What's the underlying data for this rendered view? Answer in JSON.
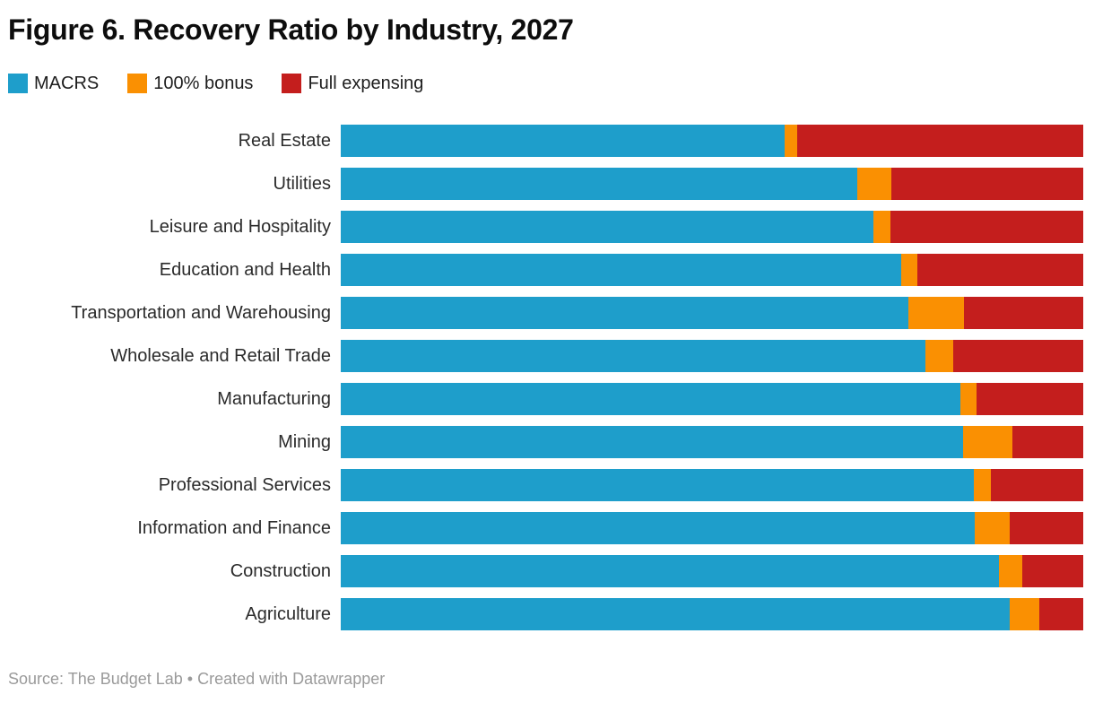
{
  "page": {
    "title": "Figure 6. Recovery Ratio by Industry, 2027",
    "footer": "Source: The Budget Lab • Created with Datawrapper"
  },
  "colors": {
    "macrs_blue": "#1e9ecb",
    "bonus_orange": "#fa9002",
    "full_expensing_red": "#c41e1d",
    "title_text": "#0d0d0d",
    "label_text": "#2b2b2b",
    "footer_text": "#9a9a9a",
    "background": "#ffffff"
  },
  "chart_data": {
    "type": "bar",
    "orientation": "horizontal",
    "stacked": true,
    "normalized": true,
    "stack_total": 1.0,
    "title": "Figure 6. Recovery Ratio by Industry, 2027",
    "xlabel": "",
    "ylabel": "",
    "xlim": [
      0,
      1
    ],
    "grid": false,
    "axes_visible": false,
    "legend_position": "top-left",
    "categories": [
      "Real Estate",
      "Utilities",
      "Leisure and Hospitality",
      "Education and Health",
      "Transportation and Warehousing",
      "Wholesale and Retail Trade",
      "Manufacturing",
      "Mining",
      "Professional Services",
      "Information and Finance",
      "Construction",
      "Agriculture"
    ],
    "series": [
      {
        "name": "MACRS",
        "color": "#1e9ecb",
        "values": [
          0.598,
          0.696,
          0.717,
          0.755,
          0.765,
          0.788,
          0.834,
          0.838,
          0.853,
          0.854,
          0.887,
          0.901
        ]
      },
      {
        "name": "100% bonus",
        "color": "#fa9002",
        "values": [
          0.017,
          0.046,
          0.023,
          0.022,
          0.074,
          0.037,
          0.022,
          0.066,
          0.023,
          0.047,
          0.031,
          0.04
        ]
      },
      {
        "name": "Full expensing",
        "color": "#c41e1d",
        "values": [
          0.385,
          0.258,
          0.26,
          0.223,
          0.161,
          0.175,
          0.144,
          0.096,
          0.124,
          0.099,
          0.082,
          0.059
        ]
      }
    ]
  }
}
